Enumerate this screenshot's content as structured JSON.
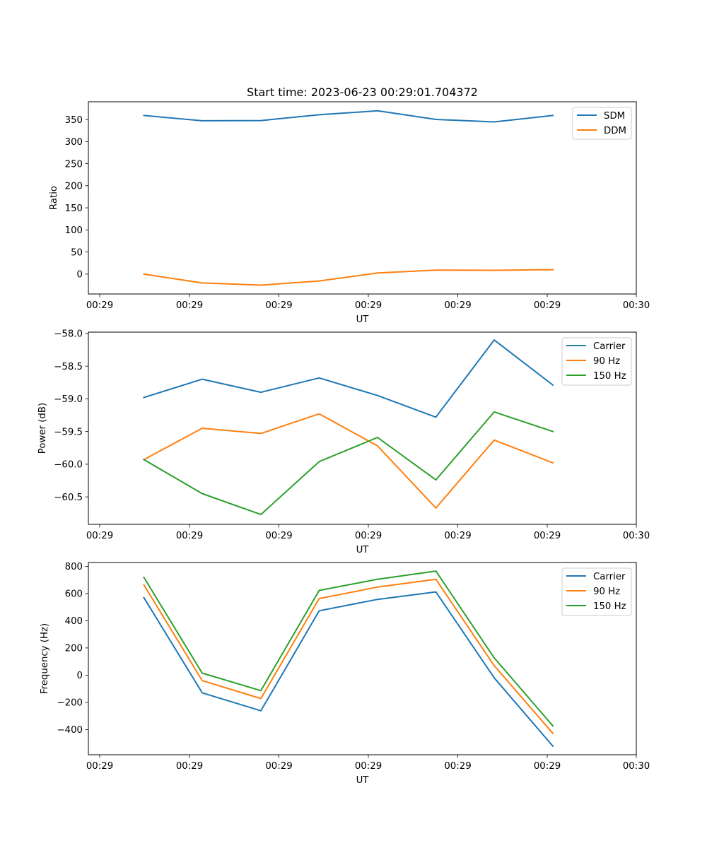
{
  "figure": {
    "title": "Start time: 2023-06-23 00:29:01.704372"
  },
  "chart_data": [
    {
      "type": "line",
      "xlabel": "UT",
      "ylabel": "Ratio",
      "x_tick_labels": [
        "00:29",
        "00:29",
        "00:29",
        "00:29",
        "00:29",
        "00:29",
        "00:30"
      ],
      "yticks": [
        0,
        50,
        100,
        150,
        200,
        250,
        300,
        350
      ],
      "ylim": [
        -45,
        390
      ],
      "x_points": 8,
      "legend_position": "top-right",
      "series": [
        {
          "name": "SDM",
          "color": "#1f77b4",
          "values": [
            359,
            347,
            347.5,
            360.5,
            369.5,
            350,
            344.5,
            359
          ]
        },
        {
          "name": "DDM",
          "color": "#ff7f0e",
          "values": [
            0,
            -20,
            -25,
            -15.5,
            2.5,
            9,
            8.5,
            10
          ]
        }
      ]
    },
    {
      "type": "line",
      "xlabel": "UT",
      "ylabel": "Power (dB)",
      "x_tick_labels": [
        "00:29",
        "00:29",
        "00:29",
        "00:29",
        "00:29",
        "00:29",
        "00:30"
      ],
      "yticks": [
        -60.5,
        -60.0,
        -59.5,
        -59.0,
        -58.5,
        -58.0
      ],
      "ytick_labels": [
        "−60.5",
        "−60.0",
        "−59.5",
        "−59.0",
        "−58.5",
        "−58.0"
      ],
      "ylim": [
        -60.92,
        -57.98
      ],
      "x_points": 8,
      "legend_position": "top-right",
      "series": [
        {
          "name": "Carrier",
          "color": "#1f77b4",
          "values": [
            -58.98,
            -58.7,
            -58.9,
            -58.68,
            -58.95,
            -59.28,
            -58.1,
            -58.79
          ]
        },
        {
          "name": "90 Hz",
          "color": "#ff7f0e",
          "values": [
            -59.93,
            -59.45,
            -59.53,
            -59.23,
            -59.72,
            -60.67,
            -59.63,
            -59.98
          ]
        },
        {
          "name": "150 Hz",
          "color": "#2ca02c",
          "values": [
            -59.93,
            -60.45,
            -60.77,
            -59.96,
            -59.59,
            -60.24,
            -59.2,
            -59.5
          ]
        }
      ]
    },
    {
      "type": "line",
      "xlabel": "UT",
      "ylabel": "Frequency (Hz)",
      "x_tick_labels": [
        "00:29",
        "00:29",
        "00:29",
        "00:29",
        "00:29",
        "00:29",
        "00:30"
      ],
      "yticks": [
        -400,
        -200,
        0,
        200,
        400,
        600,
        800
      ],
      "ytick_labels": [
        "−400",
        "−200",
        "0",
        "200",
        "400",
        "600",
        "800"
      ],
      "ylim": [
        -585,
        828
      ],
      "x_points": 8,
      "legend_position": "top-right",
      "series": [
        {
          "name": "Carrier",
          "color": "#1f77b4",
          "values": [
            570,
            -130,
            -262,
            473,
            557,
            612,
            -20,
            -522
          ]
        },
        {
          "name": "90 Hz",
          "color": "#ff7f0e",
          "values": [
            664,
            -40,
            -172,
            563,
            647,
            705,
            70,
            -428
          ]
        },
        {
          "name": "150 Hz",
          "color": "#2ca02c",
          "values": [
            719,
            15,
            -114,
            623,
            705,
            765,
            127,
            -373
          ]
        }
      ]
    }
  ]
}
